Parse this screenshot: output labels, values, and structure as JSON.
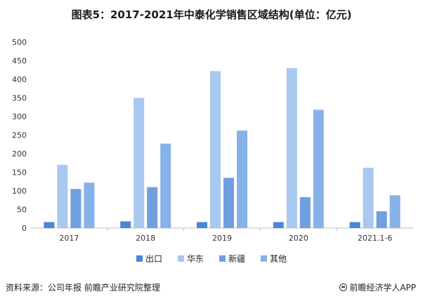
{
  "title": "图表5：2017-2021年中泰化学销售区域结构(单位：亿元)",
  "colors": {
    "出口": "#4a86d6",
    "华东": "#a8c8ef",
    "新疆": "#6f9fe0",
    "其他": "#86b2e8",
    "axis": "#bbbbbb",
    "grid": "#e9e9e9"
  },
  "chart_data": {
    "type": "bar",
    "title": "图表5：2017-2021年中泰化学销售区域结构(单位：亿元)",
    "xlabel": "",
    "ylabel": "",
    "ylim": [
      0,
      500
    ],
    "yticks": [
      0,
      50,
      100,
      150,
      200,
      250,
      300,
      350,
      400,
      450,
      500
    ],
    "grid": false,
    "legend_position": "bottom",
    "categories": [
      "2017",
      "2018",
      "2019",
      "2020",
      "2021.1-6"
    ],
    "series": [
      {
        "name": "出口",
        "values": [
          16,
          18,
          16,
          16,
          16
        ]
      },
      {
        "name": "华东",
        "values": [
          170,
          350,
          422,
          430,
          162
        ]
      },
      {
        "name": "新疆",
        "values": [
          105,
          110,
          135,
          83,
          45
        ]
      },
      {
        "name": "其他",
        "values": [
          122,
          227,
          262,
          318,
          88
        ]
      }
    ]
  },
  "footer": {
    "source": "资料来源：公司年报 前瞻产业研究院整理",
    "brand": "前瞻经济学人APP"
  }
}
